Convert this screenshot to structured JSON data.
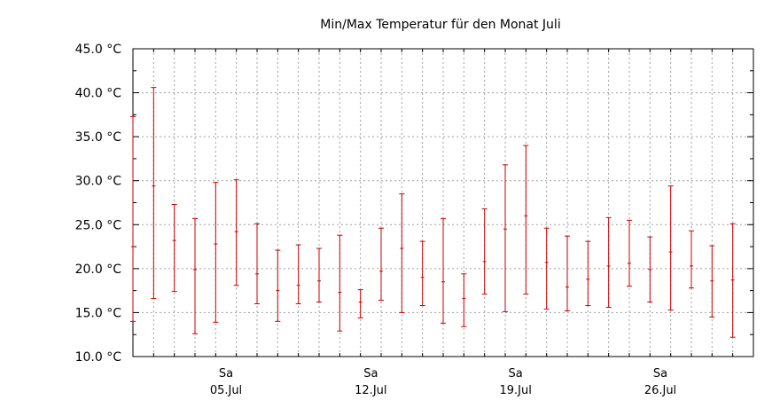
{
  "chart_data": {
    "type": "errorbar",
    "title": "Min/Max Temperatur für den Monat Juli",
    "xlabel": "",
    "ylabel": "",
    "ylim": [
      10,
      45
    ],
    "xlim": [
      1,
      31
    ],
    "yticks": [
      "10.0 °C",
      "15.0 °C",
      "20.0 °C",
      "25.0 °C",
      "30.0 °C",
      "35.0 °C",
      "40.0 °C",
      "45.0 °C"
    ],
    "ytick_values": [
      10,
      15,
      20,
      25,
      30,
      35,
      40,
      45
    ],
    "xticks": [
      {
        "day": 5,
        "weekday": "Sa",
        "date": "05.Jul"
      },
      {
        "day": 12,
        "weekday": "Sa",
        "date": "12.Jul"
      },
      {
        "day": 19,
        "weekday": "Sa",
        "date": "19.Jul"
      },
      {
        "day": 26,
        "weekday": "Sa",
        "date": "26.Jul"
      }
    ],
    "grid": true,
    "bar_color": "#cc0000",
    "series": [
      {
        "day": 1,
        "min": 14.0,
        "mean": 22.5,
        "max": 37.3
      },
      {
        "day": 2,
        "min": 16.6,
        "mean": 29.4,
        "max": 40.6
      },
      {
        "day": 3,
        "min": 17.4,
        "mean": 23.2,
        "max": 27.3
      },
      {
        "day": 4,
        "min": 12.6,
        "mean": 19.9,
        "max": 25.7
      },
      {
        "day": 5,
        "min": 13.9,
        "mean": 22.8,
        "max": 29.8
      },
      {
        "day": 6,
        "min": 18.1,
        "mean": 24.2,
        "max": 30.1
      },
      {
        "day": 7,
        "min": 16.0,
        "mean": 19.4,
        "max": 25.1
      },
      {
        "day": 8,
        "min": 14.0,
        "mean": 17.5,
        "max": 22.1
      },
      {
        "day": 9,
        "min": 16.0,
        "mean": 18.1,
        "max": 22.7
      },
      {
        "day": 10,
        "min": 16.2,
        "mean": 18.6,
        "max": 22.3
      },
      {
        "day": 11,
        "min": 12.9,
        "mean": 17.3,
        "max": 23.8
      },
      {
        "day": 12,
        "min": 14.4,
        "mean": 16.2,
        "max": 17.6
      },
      {
        "day": 13,
        "min": 16.4,
        "mean": 19.7,
        "max": 24.6
      },
      {
        "day": 14,
        "min": 15.0,
        "mean": 22.3,
        "max": 28.5
      },
      {
        "day": 15,
        "min": 15.8,
        "mean": 19.0,
        "max": 23.1
      },
      {
        "day": 16,
        "min": 13.8,
        "mean": 18.5,
        "max": 25.7
      },
      {
        "day": 17,
        "min": 13.4,
        "mean": 16.6,
        "max": 19.4
      },
      {
        "day": 18,
        "min": 17.1,
        "mean": 20.8,
        "max": 26.8
      },
      {
        "day": 19,
        "min": 15.1,
        "mean": 24.5,
        "max": 31.8
      },
      {
        "day": 20,
        "min": 17.1,
        "mean": 26.0,
        "max": 34.0
      },
      {
        "day": 21,
        "min": 15.4,
        "mean": 20.7,
        "max": 24.6
      },
      {
        "day": 22,
        "min": 15.2,
        "mean": 17.9,
        "max": 23.7
      },
      {
        "day": 23,
        "min": 15.8,
        "mean": 18.8,
        "max": 23.1
      },
      {
        "day": 24,
        "min": 15.6,
        "mean": 20.3,
        "max": 25.8
      },
      {
        "day": 25,
        "min": 18.0,
        "mean": 20.6,
        "max": 25.5
      },
      {
        "day": 26,
        "min": 16.2,
        "mean": 19.9,
        "max": 23.6
      },
      {
        "day": 27,
        "min": 15.3,
        "mean": 21.9,
        "max": 29.4
      },
      {
        "day": 28,
        "min": 17.8,
        "mean": 20.3,
        "max": 24.3
      },
      {
        "day": 29,
        "min": 14.5,
        "mean": 18.6,
        "max": 22.6
      },
      {
        "day": 30,
        "min": 12.2,
        "mean": 18.7,
        "max": 25.1
      }
    ]
  }
}
